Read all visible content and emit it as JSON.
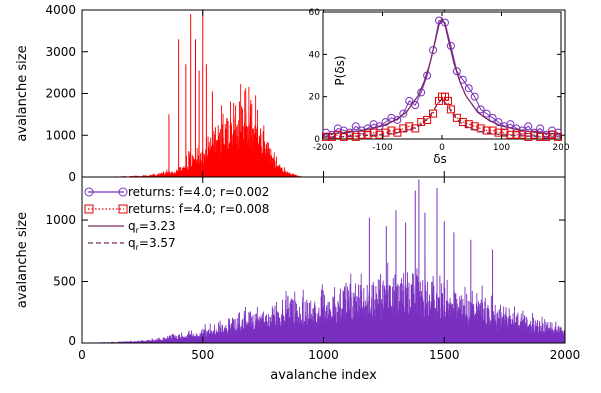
{
  "chart_data": [
    {
      "id": "top",
      "type": "bar",
      "xlabel": "",
      "ylabel": "avalanche size",
      "xlim": [
        0,
        2000
      ],
      "ylim": [
        0,
        4000
      ],
      "xticks": [
        0,
        500,
        1000,
        1500,
        2000
      ],
      "xtick_labels_visible": false,
      "yticks": [
        0,
        1000,
        2000,
        3000,
        4000
      ],
      "color": "#ff0000",
      "series": [
        {
          "x_start": 0,
          "x_step": 10,
          "values": [
            0,
            0,
            0,
            0,
            0,
            0,
            0,
            3,
            6,
            8,
            6,
            12,
            10,
            14,
            18,
            9,
            20,
            22,
            18,
            24,
            30,
            26,
            34,
            28,
            36,
            40,
            45,
            42,
            58,
            70,
            62,
            80,
            95,
            110,
            90,
            130,
            160,
            145,
            170,
            210,
            260,
            240,
            300,
            420,
            520,
            480,
            600,
            700,
            820,
            760,
            640,
            880,
            1050,
            980,
            1180,
            1300,
            1150,
            1400,
            1650,
            1500,
            1250,
            1700,
            1850,
            1600,
            1450,
            1900,
            1750,
            2000,
            1800,
            1650,
            1400,
            1550,
            1700,
            1300,
            1100,
            1250,
            1000,
            850,
            720,
            600,
            480,
            380,
            300,
            240,
            190,
            150,
            110,
            85,
            60,
            40,
            25,
            14,
            6,
            0,
            0,
            0,
            0,
            0,
            0,
            0
          ],
          "peaks": [
            [
              400,
              3300
            ],
            [
              430,
              2700
            ],
            [
              450,
              3900
            ],
            [
              470,
              3300
            ],
            [
              485,
              2550
            ],
            [
              500,
              4000
            ],
            [
              515,
              2700
            ],
            [
              540,
              2050
            ],
            [
              360,
              1500
            ]
          ]
        }
      ]
    },
    {
      "id": "bottom",
      "type": "bar",
      "xlabel": "avalanche index",
      "ylabel": "avalanche size",
      "xlim": [
        0,
        2000
      ],
      "ylim": [
        0,
        1350
      ],
      "xticks": [
        0,
        500,
        1000,
        1500,
        2000
      ],
      "yticks": [
        0,
        500,
        1000
      ],
      "color": "#7a30c0",
      "series": [
        {
          "x_start": 0,
          "x_step": 10,
          "values": [
            2,
            2,
            3,
            3,
            4,
            4,
            5,
            5,
            6,
            7,
            7,
            8,
            9,
            10,
            10,
            12,
            12,
            14,
            15,
            16,
            18,
            19,
            20,
            22,
            24,
            25,
            27,
            30,
            32,
            35,
            38,
            40,
            43,
            46,
            50,
            52,
            55,
            60,
            62,
            66,
            70,
            74,
            78,
            82,
            86,
            90,
            95,
            100,
            105,
            110,
            118,
            122,
            128,
            134,
            140,
            146,
            152,
            160,
            168,
            176,
            182,
            190,
            198,
            206,
            212,
            222,
            230,
            238,
            246,
            252,
            260,
            266,
            272,
            280,
            286,
            292,
            298,
            304,
            310,
            312,
            316,
            320,
            324,
            326,
            330,
            334,
            336,
            338,
            340,
            345,
            348,
            350,
            354,
            358,
            360,
            365,
            370,
            376,
            380,
            386,
            392,
            396,
            402,
            406,
            412,
            416,
            420,
            426,
            432,
            436,
            440,
            446,
            452,
            456,
            462,
            466,
            470,
            474,
            476,
            480,
            484,
            488,
            492,
            496,
            500,
            504,
            508,
            510,
            514,
            518,
            520,
            524,
            528,
            532,
            535,
            538,
            542,
            546,
            548,
            550,
            548,
            544,
            540,
            535,
            528,
            520,
            512,
            505,
            498,
            490,
            480,
            470,
            460,
            452,
            444,
            436,
            428,
            420,
            412,
            404,
            396,
            388,
            380,
            372,
            364,
            356,
            348,
            340,
            332,
            324,
            318,
            312,
            306,
            300,
            294,
            288,
            282,
            276,
            270,
            264,
            258,
            252,
            246,
            240,
            234,
            228,
            222,
            216,
            210,
            204,
            198,
            192,
            186,
            180,
            175,
            170,
            166,
            162,
            158,
            155
          ],
          "peaks": [
            [
              1190,
              1020
            ],
            [
              1260,
              950
            ],
            [
              1300,
              1080
            ],
            [
              1340,
              980
            ],
            [
              1380,
              1240
            ],
            [
              1395,
              1330
            ],
            [
              1420,
              1060
            ],
            [
              1470,
              1260
            ],
            [
              1500,
              990
            ],
            [
              1540,
              900
            ],
            [
              1610,
              840
            ],
            [
              1700,
              760
            ]
          ]
        }
      ],
      "legend": {
        "placement": "top-left",
        "entries": [
          {
            "label": "returns: f=4.0; r=0.002",
            "color": "#7a30c0",
            "style": "solid",
            "marker": "circle"
          },
          {
            "label": "returns: f=4.0; r=0.008",
            "color": "#e00000",
            "style": "dotted",
            "marker": "square"
          },
          {
            "label_main": "q",
            "label_sub": "r",
            "label_rest": "=3.23",
            "color": "#7a2a60",
            "style": "solid",
            "marker": "none"
          },
          {
            "label_main": "q",
            "label_sub": "r",
            "label_rest": "=3.57",
            "color": "#7a2a60",
            "style": "dashed",
            "marker": "none"
          }
        ]
      }
    },
    {
      "id": "inset",
      "type": "scatter",
      "xlabel": "δs",
      "ylabel": "P(δs)",
      "xlim": [
        -200,
        200
      ],
      "ylim": [
        0,
        60
      ],
      "xticks": [
        -200,
        -100,
        0,
        100,
        200
      ],
      "yticks": [
        0,
        20,
        40,
        60
      ],
      "series": [
        {
          "name": "returns: f=4.0; r=0.002",
          "color": "#7a30c0",
          "marker": "circle",
          "x": [
            -195,
            -185,
            -175,
            -165,
            -155,
            -145,
            -135,
            -125,
            -115,
            -105,
            -95,
            -85,
            -75,
            -65,
            -55,
            -45,
            -35,
            -25,
            -15,
            -5,
            5,
            15,
            25,
            35,
            45,
            55,
            65,
            75,
            85,
            95,
            105,
            115,
            125,
            135,
            145,
            155,
            165,
            175,
            185,
            195
          ],
          "y": [
            3,
            2,
            5,
            4,
            3,
            6,
            4,
            5,
            7,
            6,
            8,
            10,
            9,
            12,
            18,
            16,
            22,
            30,
            42,
            56,
            55,
            44,
            32,
            28,
            24,
            20,
            14,
            12,
            10,
            8,
            6,
            7,
            5,
            4,
            6,
            3,
            5,
            2,
            4,
            3
          ]
        },
        {
          "name": "returns: f=4.0; r=0.008",
          "color": "#e00000",
          "marker": "square",
          "x": [
            -195,
            -185,
            -175,
            -165,
            -155,
            -145,
            -135,
            -125,
            -115,
            -105,
            -95,
            -85,
            -75,
            -65,
            -55,
            -45,
            -35,
            -25,
            -15,
            -5,
            5,
            15,
            25,
            35,
            45,
            55,
            65,
            75,
            85,
            95,
            105,
            115,
            125,
            135,
            145,
            155,
            165,
            175,
            185,
            195
          ],
          "y": [
            1,
            1,
            2,
            1,
            2,
            1,
            2,
            2,
            3,
            2,
            3,
            4,
            3,
            5,
            6,
            5,
            8,
            9,
            12,
            18,
            20,
            14,
            10,
            8,
            7,
            6,
            5,
            4,
            4,
            3,
            3,
            2,
            2,
            2,
            1,
            2,
            1,
            1,
            2,
            1
          ],
          "peak_markers": [
            [
              0,
              20
            ],
            [
              10,
              18
            ]
          ]
        },
        {
          "name_main": "q",
          "name_sub": "r",
          "name_rest": "=3.23",
          "color": "#7a2a60",
          "style": "solid",
          "x": [
            -200,
            -180,
            -160,
            -140,
            -120,
            -100,
            -80,
            -60,
            -40,
            -30,
            -20,
            -10,
            -5,
            0,
            5,
            10,
            20,
            30,
            40,
            60,
            80,
            100,
            120,
            140,
            160,
            180,
            200
          ],
          "y": [
            2.2,
            2.6,
            3.1,
            3.8,
            4.8,
            6.2,
            8.6,
            12.6,
            20.5,
            27.0,
            36.0,
            48.0,
            54.0,
            57.0,
            54.0,
            48.0,
            36.0,
            27.0,
            20.5,
            12.6,
            8.6,
            6.2,
            4.8,
            3.8,
            3.1,
            2.6,
            2.2
          ]
        },
        {
          "name_main": "q",
          "name_sub": "r",
          "name_rest": "=3.57",
          "color": "#7a2a60",
          "style": "dashed",
          "x": [
            -200,
            -180,
            -160,
            -140,
            -120,
            -100,
            -80,
            -60,
            -40,
            -30,
            -20,
            -10,
            0,
            10,
            20,
            30,
            40,
            60,
            80,
            100,
            120,
            140,
            160,
            180,
            200
          ],
          "y": [
            0.9,
            1.0,
            1.2,
            1.4,
            1.7,
            2.1,
            2.7,
            3.8,
            6.0,
            8.0,
            11.0,
            15.5,
            19.0,
            15.5,
            11.0,
            8.0,
            6.0,
            3.8,
            2.7,
            2.1,
            1.7,
            1.4,
            1.2,
            1.0,
            0.9
          ]
        }
      ]
    }
  ]
}
